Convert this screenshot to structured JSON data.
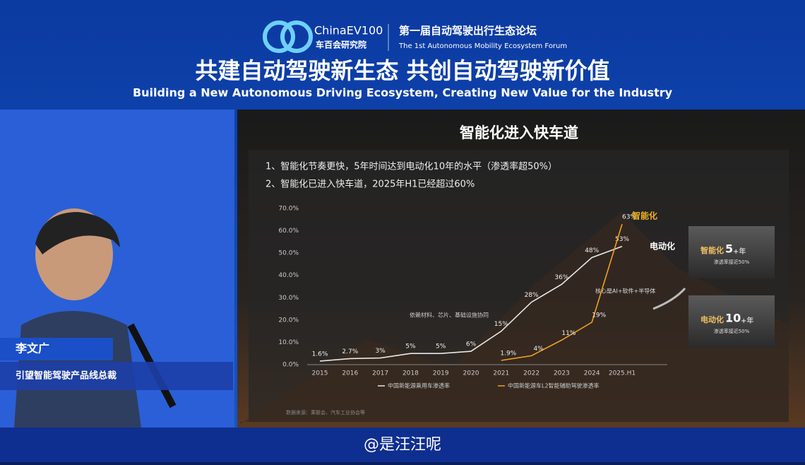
{
  "banner": {
    "logo": "ChinaEV100",
    "org": "车百会研究院",
    "forum_cn": "第一届自动驾驶出行生态论坛",
    "forum_en": "The 1st Autonomous Mobility Ecosystem Forum",
    "slogan_cn": "共建自动驾驶新生态  共创自动驾驶新价值",
    "slogan_en": "Building a New Autonomous Driving Ecosystem, Creating New Value for the Industry"
  },
  "speaker": {
    "name": "李文广",
    "role": "引望智能驾驶产品线总裁"
  },
  "slide": {
    "title": "智能化进入快车道",
    "bullets": [
      "1、智能化节奏更快，5年时间达到电动化10年的水平（渗透率超50%）",
      "2、智能化已进入快车道，2025年H1已经超过60%"
    ],
    "boxes": [
      {
        "label": "智能化",
        "num": "5",
        "unit": "+年",
        "note": "渗透率接近50%"
      },
      {
        "label": "电动化",
        "num": "10",
        "unit": "+年",
        "note": "渗透率接近50%"
      }
    ],
    "source": "数据来源：乘联会、汽车工业协会等"
  },
  "chart_data": {
    "type": "line",
    "categories": [
      "2015",
      "2016",
      "2017",
      "2018",
      "2019",
      "2020",
      "2021",
      "2022",
      "2023",
      "2024",
      "2025.H1"
    ],
    "series": [
      {
        "name": "中国新能源乘用车渗透率",
        "color": "#e8e8e8",
        "values": [
          1.6,
          2.7,
          3,
          5,
          5,
          6,
          15,
          28,
          36,
          48,
          53
        ],
        "value_labels": [
          "1.6%",
          "2.7%",
          "3%",
          "5%",
          "5%",
          "6%",
          "15%",
          "28%",
          "36%",
          "48%",
          "53%"
        ]
      },
      {
        "name": "中国新能源车L2智能辅助驾驶渗透率",
        "color": "#f0a020",
        "values": [
          null,
          null,
          null,
          null,
          null,
          null,
          1.9,
          4,
          11,
          19,
          63
        ],
        "value_labels": [
          null,
          null,
          null,
          null,
          null,
          null,
          "1.9%",
          "4%",
          "11%",
          "19%",
          "63%"
        ]
      }
    ],
    "ylim": [
      0,
      70
    ],
    "yticks": [
      {
        "value": 0,
        "label": "0.0%"
      },
      {
        "value": 10,
        "label": "10.0%"
      },
      {
        "value": 20,
        "label": "20.0%"
      },
      {
        "value": 30,
        "label": "30.0%"
      },
      {
        "value": 40,
        "label": "40.0%"
      },
      {
        "value": 50,
        "label": "50.0%"
      },
      {
        "value": 60,
        "label": "60.0%"
      },
      {
        "value": 70,
        "label": "70.0%"
      }
    ],
    "annotations": [
      "依赖材料、芯片、基础设施协同",
      "核心是AI+软件+半导体"
    ],
    "line_tags": [
      "电动化",
      "智能化"
    ]
  },
  "watermark": "@是汪汪呢"
}
